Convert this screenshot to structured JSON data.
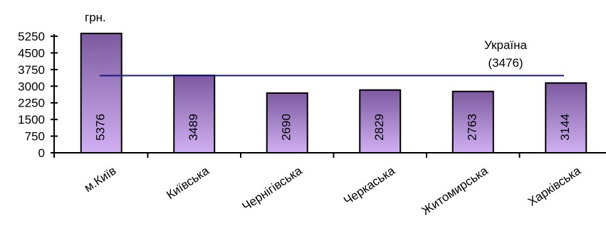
{
  "chart_data": {
    "type": "bar",
    "unit_label": "грн.",
    "categories": [
      "м.Київ",
      "Київська",
      "Чернігівська",
      "Черкаська",
      "Житомирська",
      "Харківська"
    ],
    "values": [
      5376,
      3489,
      2690,
      2829,
      2763,
      3144
    ],
    "value_labels": [
      "5376",
      "3489",
      "2690",
      "2829",
      "2763",
      "3144"
    ],
    "yticks": [
      0,
      750,
      1500,
      2250,
      3000,
      3750,
      4500,
      5250
    ],
    "ytick_labels": [
      "0",
      "750",
      "1500",
      "2250",
      "3000",
      "3750",
      "4500",
      "5250"
    ],
    "ylim": [
      0,
      5250
    ],
    "reference_line": {
      "value": 3476,
      "label_line1": "Україна",
      "label_line2": "(3476)",
      "color": "#1a1a80"
    },
    "bar_gradient": {
      "top": "#7d5aa0",
      "bottom": "#d0b0f2"
    },
    "grid": false,
    "legend": "none"
  }
}
